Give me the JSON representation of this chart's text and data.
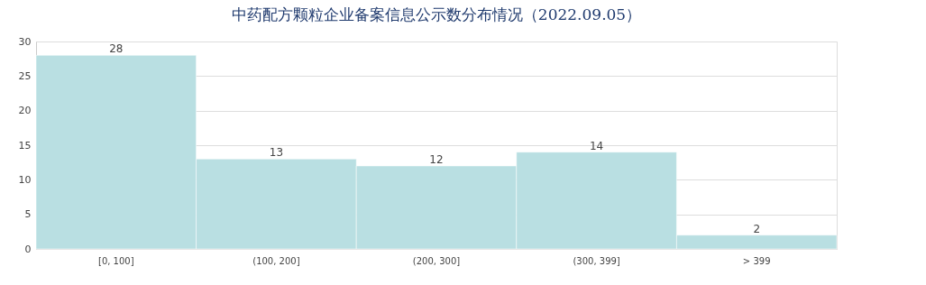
{
  "chart_data": {
    "type": "bar",
    "title": "中药配方颗粒企业备案信息公示数分布情况（2022.09.05）",
    "categories": [
      "[0, 100]",
      "(100, 200]",
      "(200, 300]",
      "(300, 399]",
      "> 399"
    ],
    "values": [
      28,
      13,
      12,
      14,
      2
    ],
    "color": "#b9dfe2",
    "ylim": [
      0,
      30
    ],
    "yticks": [
      0,
      5,
      10,
      15,
      20,
      25,
      30
    ],
    "grid": "y",
    "data_labels": true
  }
}
